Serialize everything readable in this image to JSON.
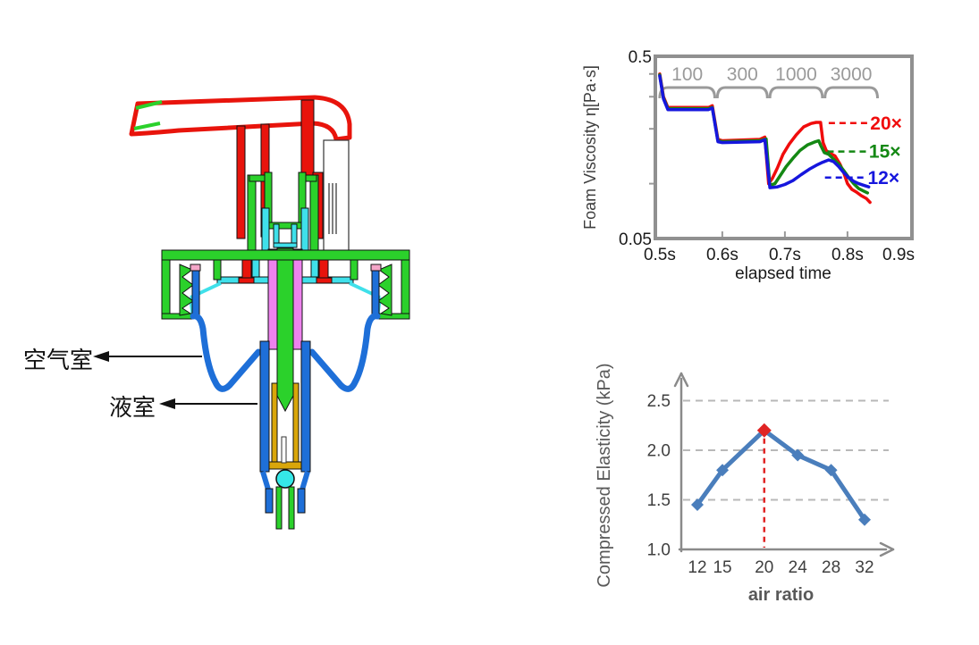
{
  "pump_diagram": {
    "air_chamber_label": "空气室",
    "liquid_chamber_label": "液室",
    "colors": {
      "head_red": "#e8140c",
      "body_green": "#2bd12b",
      "inner_cyan": "#3fe0ea",
      "piston_magenta": "#ee82ee",
      "chamber_blue": "#1e6fd8",
      "sleeve_gold": "#d9a60a",
      "ball_cyan": "#35e8e8",
      "liner_pink": "#f4a6c8"
    }
  },
  "chart_data": [
    {
      "type": "line",
      "title": "",
      "ylabel": "Foam Viscosity η[Pa·s]",
      "xlabel": "elapsed  time",
      "yscale": "log",
      "ylim": [
        0.05,
        0.5
      ],
      "xlim": [
        0.493,
        0.903
      ],
      "frame_color": "#909090",
      "annotation_color": "#9a9a9a",
      "tick_color": "#1a1a1a",
      "label_color": "#3d3d3d",
      "x_ticks": {
        "values": [
          0.5,
          0.6,
          0.7,
          0.8,
          0.9
        ],
        "labels": [
          "0.5s",
          "0.6s",
          "0.7s",
          "0.8s",
          "0.9s"
        ]
      },
      "y_ticks": {
        "values": [
          0.5,
          0.05
        ],
        "labels": [
          "0.5",
          "0.05"
        ]
      },
      "y_minor_ticks": [
        0.4,
        0.3,
        0.2,
        0.1
      ],
      "x_minor_ticks": [
        0.6,
        0.7,
        0.8
      ],
      "shear_rate_labels": [
        {
          "label": "100",
          "from": 0.5,
          "to": 0.588
        },
        {
          "label": "300",
          "from": 0.592,
          "to": 0.672
        },
        {
          "label": "1000",
          "from": 0.676,
          "to": 0.76
        },
        {
          "label": "3000",
          "from": 0.764,
          "to": 0.848
        }
      ],
      "series": [
        {
          "name": "20×",
          "color": "#f00c0c",
          "x": [
            0.5,
            0.506,
            0.513,
            0.578,
            0.584,
            0.593,
            0.6,
            0.66,
            0.668,
            0.674,
            0.68,
            0.688,
            0.697,
            0.707,
            0.718,
            0.73,
            0.742,
            0.75,
            0.757,
            0.761,
            0.766,
            0.772,
            0.78,
            0.788,
            0.794,
            0.8,
            0.807,
            0.814,
            0.822,
            0.83,
            0.836
          ],
          "y": [
            0.4,
            0.3,
            0.262,
            0.262,
            0.268,
            0.175,
            0.172,
            0.175,
            0.18,
            0.1,
            0.107,
            0.122,
            0.145,
            0.165,
            0.185,
            0.205,
            0.214,
            0.217,
            0.217,
            0.168,
            0.152,
            0.147,
            0.142,
            0.128,
            0.115,
            0.1,
            0.093,
            0.09,
            0.086,
            0.083,
            0.079
          ]
        },
        {
          "name": "15×",
          "color": "#148814",
          "x": [
            0.5,
            0.506,
            0.513,
            0.578,
            0.584,
            0.593,
            0.6,
            0.66,
            0.67,
            0.676,
            0.684,
            0.692,
            0.702,
            0.713,
            0.724,
            0.736,
            0.747,
            0.754,
            0.758,
            0.763,
            0.77,
            0.778,
            0.786,
            0.794,
            0.802,
            0.81,
            0.818,
            0.826,
            0.832
          ],
          "y": [
            0.395,
            0.295,
            0.258,
            0.258,
            0.262,
            0.172,
            0.17,
            0.172,
            0.176,
            0.098,
            0.1,
            0.11,
            0.124,
            0.138,
            0.152,
            0.163,
            0.169,
            0.172,
            0.16,
            0.148,
            0.145,
            0.136,
            0.128,
            0.118,
            0.108,
            0.1,
            0.094,
            0.091,
            0.089
          ]
        },
        {
          "name": "12×",
          "color": "#1616dd",
          "x": [
            0.5,
            0.506,
            0.513,
            0.578,
            0.584,
            0.593,
            0.6,
            0.66,
            0.668,
            0.676,
            0.688,
            0.7,
            0.713,
            0.726,
            0.739,
            0.75,
            0.76,
            0.77,
            0.778,
            0.786,
            0.794,
            0.802,
            0.81,
            0.818,
            0.826,
            0.834
          ],
          "y": [
            0.39,
            0.292,
            0.255,
            0.255,
            0.26,
            0.17,
            0.168,
            0.17,
            0.174,
            0.095,
            0.096,
            0.099,
            0.104,
            0.112,
            0.12,
            0.126,
            0.131,
            0.135,
            0.132,
            0.124,
            0.115,
            0.108,
            0.103,
            0.1,
            0.098,
            0.096
          ]
        }
      ],
      "legend": [
        {
          "label": "20×",
          "eta": 0.215,
          "t0": 0.77,
          "t1": 0.832
        },
        {
          "label": "15×",
          "eta": 0.15,
          "t0": 0.768,
          "t1": 0.83
        },
        {
          "label": "12×",
          "eta": 0.108,
          "t0": 0.764,
          "t1": 0.828
        }
      ]
    },
    {
      "type": "line",
      "title": "",
      "ylabel": "Compressed Elasticity (kPa)",
      "xlabel": "air ratio",
      "categories": [
        12,
        15,
        20,
        24,
        28,
        32
      ],
      "values": [
        1.45,
        1.8,
        2.2,
        1.95,
        1.8,
        1.3
      ],
      "ylim": [
        1.0,
        2.8
      ],
      "y_ticks": [
        1.0,
        1.5,
        2.0,
        2.5
      ],
      "y_tick_labels": [
        "1.0",
        "1.5",
        "2.0",
        "2.5"
      ],
      "gridlines": [
        1.5,
        2.0,
        2.5
      ],
      "line_color": "#4a7ebc",
      "axis_color": "#8a8a8a",
      "grid_color": "#b8b8b8",
      "tick_color": "#3f3f3f",
      "label_color": "#595959",
      "highlight": {
        "category": 20,
        "value": 2.2,
        "color": "#e02424"
      }
    }
  ]
}
